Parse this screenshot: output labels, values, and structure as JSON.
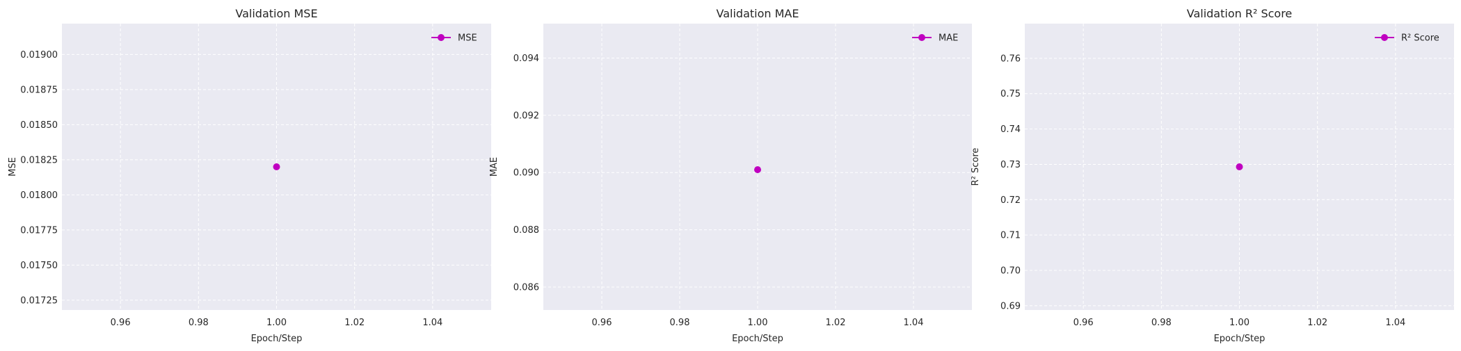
{
  "colors": {
    "plot_bg": "#eaeaf2",
    "grid": "#ffffff",
    "marker": "#c000c0",
    "text": "#262626"
  },
  "chart_data": [
    {
      "type": "line",
      "title": "Validation MSE",
      "xlabel": "Epoch/Step",
      "ylabel": "MSE",
      "xlim": [
        0.945,
        1.055
      ],
      "ylim": [
        0.01718,
        0.01922
      ],
      "xticks": [
        "0.96",
        "0.98",
        "1.00",
        "1.02",
        "1.04"
      ],
      "yticks": [
        "0.01725",
        "0.01750",
        "0.01775",
        "0.01800",
        "0.01825",
        "0.01850",
        "0.01875",
        "0.01900"
      ],
      "grid": true,
      "grid_style": "dashed",
      "legend_position": "top-right",
      "series": [
        {
          "name": "MSE",
          "x": [
            1.0
          ],
          "y": [
            0.0182
          ],
          "marker": "circle",
          "color": "#c000c0"
        }
      ]
    },
    {
      "type": "line",
      "title": "Validation MAE",
      "xlabel": "Epoch/Step",
      "ylabel": "MAE",
      "xlim": [
        0.945,
        1.055
      ],
      "ylim": [
        0.0852,
        0.0952
      ],
      "xticks": [
        "0.96",
        "0.98",
        "1.00",
        "1.02",
        "1.04"
      ],
      "yticks": [
        "0.086",
        "0.088",
        "0.090",
        "0.092",
        "0.094"
      ],
      "grid": true,
      "grid_style": "dashed",
      "legend_position": "top-right",
      "series": [
        {
          "name": "MAE",
          "x": [
            1.0
          ],
          "y": [
            0.0901
          ],
          "marker": "circle",
          "color": "#c000c0"
        }
      ]
    },
    {
      "type": "line",
      "title": "Validation R² Score",
      "xlabel": "Epoch/Step",
      "ylabel": "R² Score",
      "xlim": [
        0.945,
        1.055
      ],
      "ylim": [
        0.6888,
        0.7698
      ],
      "xticks": [
        "0.96",
        "0.98",
        "1.00",
        "1.02",
        "1.04"
      ],
      "yticks": [
        "0.69",
        "0.70",
        "0.71",
        "0.72",
        "0.73",
        "0.74",
        "0.75",
        "0.76"
      ],
      "grid": true,
      "grid_style": "dashed",
      "legend_position": "top-right",
      "series": [
        {
          "name": "R² Score",
          "x": [
            1.0
          ],
          "y": [
            0.7293
          ],
          "marker": "circle",
          "color": "#c000c0"
        }
      ]
    }
  ]
}
